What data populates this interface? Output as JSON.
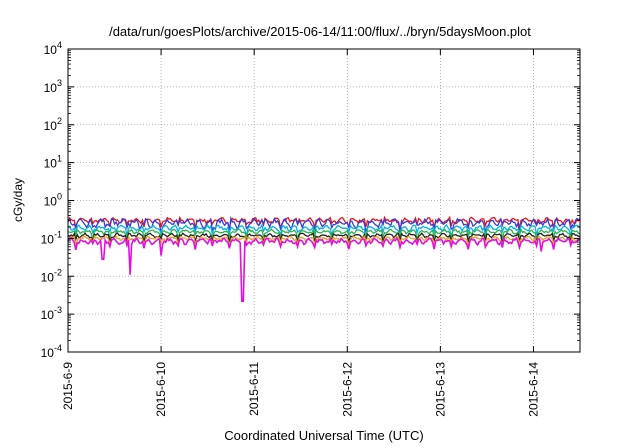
{
  "chart_data": {
    "type": "line",
    "title": "/data/run/goesPlots/archive/2015-06-14/11:00/flux/../bryn/5daysMoon.plot",
    "xlabel": "Coordinated Universal Time (UTC)",
    "ylabel": "cGy/day",
    "yscale": "log",
    "ylim": [
      0.0001,
      10000
    ],
    "xlim": [
      "2015-06-09T00:00",
      "2015-06-14T12:00"
    ],
    "grid": true,
    "legend": "none",
    "x_ticks": [
      "2015-6-9",
      "2015-6-10",
      "2015-6-11",
      "2015-6-12",
      "2015-6-13",
      "2015-6-14"
    ],
    "y_ticks": [
      {
        "value": 0.0001,
        "base": "10",
        "exp": "-4"
      },
      {
        "value": 0.001,
        "base": "10",
        "exp": "-3"
      },
      {
        "value": 0.01,
        "base": "10",
        "exp": "-2"
      },
      {
        "value": 0.1,
        "base": "10",
        "exp": "-1"
      },
      {
        "value": 1,
        "base": "10",
        "exp": "0"
      },
      {
        "value": 10,
        "base": "10",
        "exp": "1"
      },
      {
        "value": 100,
        "base": "10",
        "exp": "2"
      },
      {
        "value": 1000,
        "base": "10",
        "exp": "3"
      },
      {
        "value": 10000,
        "base": "10",
        "exp": "4"
      }
    ],
    "series": [
      {
        "color": "#e8141c",
        "base": 0.3,
        "amp": 0.05
      },
      {
        "color": "#3a3ad6",
        "base": 0.26,
        "amp": 0.07
      },
      {
        "color": "#00b4e6",
        "base": 0.19,
        "amp": 0.03
      },
      {
        "color": "#2cb24a",
        "base": 0.15,
        "amp": 0.02
      },
      {
        "color": "#222222",
        "base": 0.12,
        "amp": 0.015
      },
      {
        "color": "#f0a020",
        "base": 0.1,
        "amp": 0.012
      },
      {
        "color": "#e010e0",
        "base": 0.085,
        "amp": 0.015
      }
    ],
    "dips": [
      {
        "x": "2015-06-09T09:00",
        "value": 0.028
      },
      {
        "x": "2015-06-09T16:00",
        "value": 0.011
      },
      {
        "x": "2015-06-10T00:00",
        "value": 0.035
      },
      {
        "x": "2015-06-10T21:00",
        "value": 0.0022
      },
      {
        "x": "2015-06-14T02:00",
        "value": 0.045
      }
    ]
  }
}
